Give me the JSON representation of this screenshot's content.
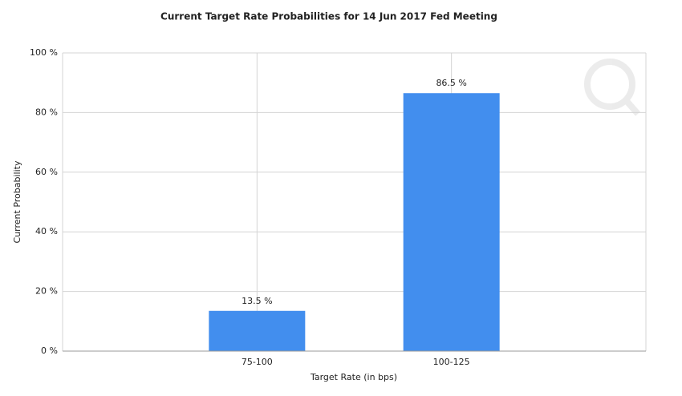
{
  "chart_data": {
    "type": "bar",
    "title": "Current Target Rate Probabilities for 14 Jun 2017 Fed Meeting",
    "x_label": "Target Rate (in bps)",
    "y_label": "Current Probability",
    "categories": [
      "75-100",
      "100-125"
    ],
    "values": [
      13.5,
      86.5
    ],
    "value_labels": [
      "13.5 %",
      "86.5 %"
    ],
    "color": "#428eee",
    "ylim": [
      0,
      100
    ],
    "yticks": [
      {
        "value": 0,
        "label": "0 %"
      },
      {
        "value": 20,
        "label": "20 %"
      },
      {
        "value": 40,
        "label": "40 %"
      },
      {
        "value": 60,
        "label": "60 %"
      },
      {
        "value": 80,
        "label": "80 %"
      },
      {
        "value": 100,
        "label": "100 %"
      }
    ],
    "grid": true
  }
}
